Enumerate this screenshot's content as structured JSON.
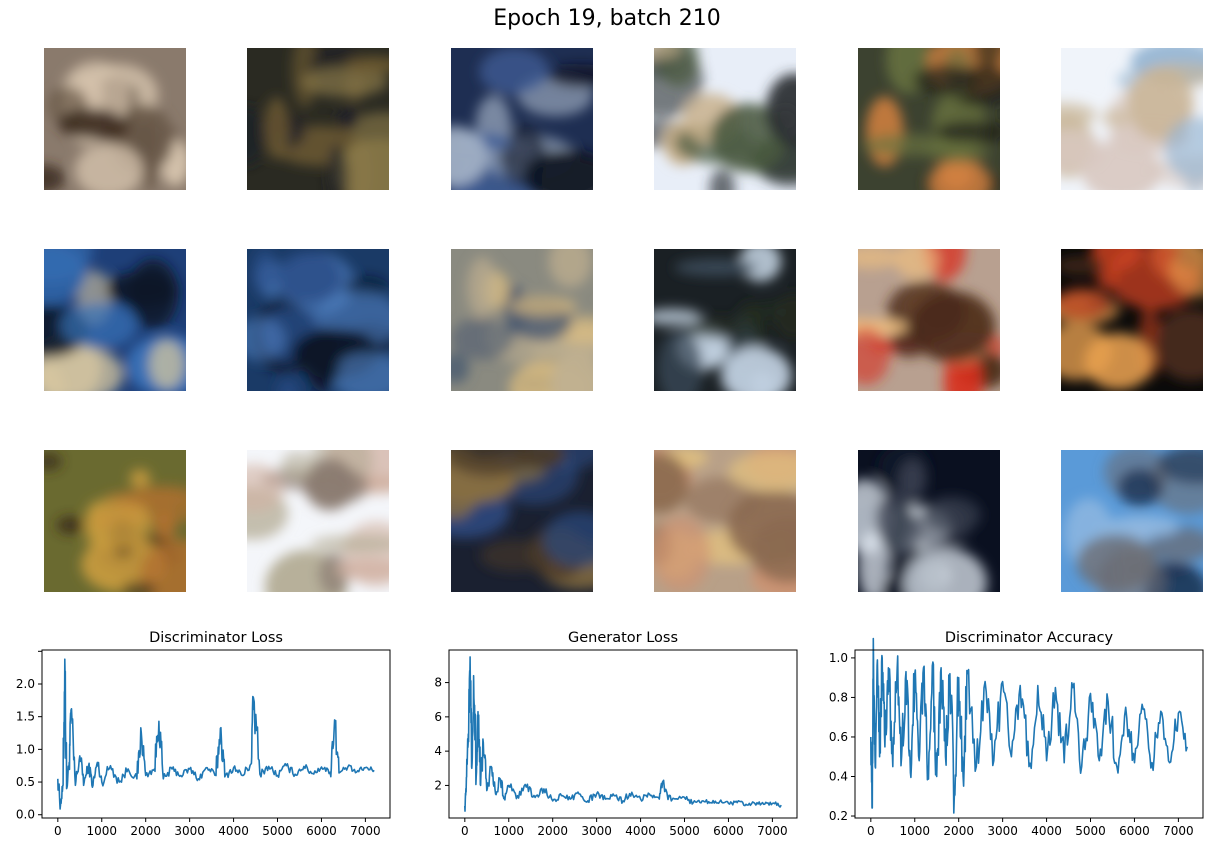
{
  "suptitle": "Epoch 19, batch 210",
  "colors": {
    "line": "#1f77b4",
    "axis": "#000000"
  },
  "sample_grid": {
    "rows": 3,
    "cols": 6,
    "palettes": [
      [
        "#8a7a6c",
        "#3a2a1e",
        "#d9c7b0",
        "#6b5a4a"
      ],
      [
        "#2a2a22",
        "#6e5a32",
        "#1c1f28",
        "#8b7a48"
      ],
      [
        "#1e2e52",
        "#0c1220",
        "#a6b4c8",
        "#3f5d95"
      ],
      [
        "#e8eef8",
        "#4a5a40",
        "#2a2f33",
        "#c8b08a"
      ],
      [
        "#3c4230",
        "#6a7440",
        "#1a1a16",
        "#d08040"
      ],
      [
        "#f0f4fa",
        "#d8c8c0",
        "#c9b596",
        "#8fb2d0"
      ],
      [
        "#1e3f78",
        "#d9c8a0",
        "#3872b8",
        "#0c1828"
      ],
      [
        "#1a3a66",
        "#4f7fc0",
        "#0a1424",
        "#2b4f8a"
      ],
      [
        "#8a8a80",
        "#4a5a70",
        "#c0b090",
        "#e0c080"
      ],
      [
        "#1a2024",
        "#3a4a58",
        "#c8d8e8",
        "#222a20"
      ],
      [
        "#b8a090",
        "#d83020",
        "#f0c080",
        "#4a2a1a"
      ],
      [
        "#0a0a0a",
        "#c84020",
        "#e8a050",
        "#503020"
      ],
      [
        "#6a6a30",
        "#b07030",
        "#3a2a1a",
        "#d0a040"
      ],
      [
        "#f4f6fa",
        "#b0a890",
        "#d0b0a0",
        "#8a7a70"
      ],
      [
        "#1a2030",
        "#4a3a28",
        "#2c4a80",
        "#8a7040"
      ],
      [
        "#b8a088",
        "#e0c080",
        "#8a6a50",
        "#d09070"
      ],
      [
        "#0a1020",
        "#e8f0f8",
        "#3a4050",
        "#10182a"
      ],
      [
        "#5a9ad8",
        "#90b8e0",
        "#6a6a70",
        "#1a3050"
      ]
    ]
  },
  "chart_data": [
    {
      "type": "line",
      "title": "Discriminator Loss",
      "xlabel": "",
      "ylabel": "",
      "xlim": [
        -360,
        7560
      ],
      "ylim": [
        -0.05,
        2.52
      ],
      "xticks": [
        0,
        1000,
        2000,
        3000,
        4000,
        5000,
        6000,
        7000
      ],
      "yticks": [
        0.0,
        0.5,
        1.0,
        1.5,
        2.0,
        2.5
      ],
      "ytick_labels": [
        "0.0",
        "0.5",
        "1.0",
        "1.5",
        "2.0",
        ""
      ],
      "series": [
        {
          "x": [
            0,
            60,
            120,
            160,
            200,
            260,
            300,
            400,
            500,
            600,
            700,
            800,
            900,
            1000,
            1200,
            1400,
            1600,
            1800,
            1900,
            2000,
            2200,
            2300,
            2400,
            2600,
            2800,
            3000,
            3200,
            3400,
            3600,
            3700,
            3800,
            4000,
            4200,
            4400,
            4450,
            4600,
            4800,
            5000,
            5200,
            5400,
            5600,
            5800,
            6000,
            6200,
            6300,
            6400,
            6600,
            6800,
            7000,
            7200
          ],
          "y": [
            0.55,
            0.15,
            0.45,
            2.38,
            0.4,
            0.8,
            1.6,
            0.45,
            0.9,
            0.5,
            0.75,
            0.45,
            0.8,
            0.5,
            0.75,
            0.5,
            0.7,
            0.55,
            1.25,
            0.6,
            0.7,
            1.43,
            0.55,
            0.7,
            0.6,
            0.7,
            0.55,
            0.72,
            0.6,
            1.32,
            0.58,
            0.72,
            0.6,
            0.78,
            1.8,
            0.62,
            0.74,
            0.6,
            0.75,
            0.62,
            0.74,
            0.63,
            0.73,
            0.65,
            1.45,
            0.64,
            0.73,
            0.65,
            0.72,
            0.68
          ]
        }
      ],
      "grid": false
    },
    {
      "type": "line",
      "title": "Generator Loss",
      "xlabel": "",
      "ylabel": "",
      "xlim": [
        -360,
        7560
      ],
      "ylim": [
        0.1,
        9.9
      ],
      "xticks": [
        0,
        1000,
        2000,
        3000,
        4000,
        5000,
        6000,
        7000
      ],
      "yticks": [
        2,
        4,
        6,
        8
      ],
      "ytick_labels": [
        "2",
        "4",
        "6",
        "8"
      ],
      "series": [
        {
          "x": [
            0,
            40,
            80,
            120,
            160,
            200,
            260,
            300,
            360,
            420,
            500,
            600,
            700,
            800,
            900,
            1000,
            1200,
            1400,
            1600,
            1800,
            2000,
            2200,
            2400,
            2600,
            2800,
            3000,
            3200,
            3400,
            3600,
            3800,
            4000,
            4200,
            4400,
            4500,
            4700,
            5000,
            5200,
            5400,
            5600,
            5800,
            6000,
            6200,
            6400,
            6600,
            6800,
            7000,
            7200
          ],
          "y": [
            0.8,
            2.5,
            5.0,
            9.5,
            3.0,
            8.4,
            2.5,
            6.3,
            2.0,
            4.5,
            1.7,
            3.1,
            1.5,
            2.4,
            1.3,
            2.0,
            1.4,
            1.9,
            1.3,
            1.8,
            1.1,
            1.4,
            1.2,
            1.5,
            1.1,
            1.5,
            1.2,
            1.4,
            1.1,
            1.6,
            1.2,
            1.5,
            1.3,
            2.2,
            1.1,
            1.3,
            1.0,
            1.1,
            1.0,
            1.05,
            0.95,
            1.0,
            0.9,
            0.95,
            0.9,
            0.95,
            0.85
          ]
        }
      ],
      "grid": false
    },
    {
      "type": "line",
      "title": "Discriminator Accuracy",
      "xlabel": "",
      "ylabel": "",
      "xlim": [
        -360,
        7560
      ],
      "ylim": [
        0.19,
        1.04
      ],
      "xticks": [
        0,
        1000,
        2000,
        3000,
        4000,
        5000,
        6000,
        7000
      ],
      "yticks": [
        0.2,
        0.4,
        0.6,
        0.8,
        1.0
      ],
      "ytick_labels": [
        "0.2",
        "0.4",
        "0.6",
        "0.8",
        "1.0"
      ],
      "series": [
        {
          "x": [
            0,
            30,
            60,
            100,
            150,
            200,
            260,
            320,
            400,
            500,
            600,
            700,
            800,
            900,
            1000,
            1100,
            1200,
            1300,
            1400,
            1500,
            1600,
            1700,
            1800,
            1900,
            2000,
            2100,
            2200,
            2400,
            2600,
            2800,
            3000,
            3200,
            3400,
            3600,
            3800,
            4000,
            4200,
            4400,
            4600,
            4800,
            5000,
            5200,
            5400,
            5600,
            5800,
            6000,
            6200,
            6400,
            6600,
            6800,
            7000,
            7200
          ],
          "y": [
            0.6,
            0.24,
            1.0,
            0.45,
            0.99,
            0.5,
            1.0,
            0.55,
            0.95,
            0.45,
            0.95,
            0.5,
            0.93,
            0.42,
            0.92,
            0.48,
            0.95,
            0.45,
            0.96,
            0.4,
            0.95,
            0.5,
            0.92,
            0.3,
            0.9,
            0.4,
            0.92,
            0.45,
            0.88,
            0.48,
            0.88,
            0.5,
            0.86,
            0.45,
            0.86,
            0.48,
            0.85,
            0.47,
            0.85,
            0.45,
            0.82,
            0.48,
            0.78,
            0.45,
            0.75,
            0.47,
            0.74,
            0.47,
            0.73,
            0.47,
            0.72,
            0.55
          ]
        }
      ],
      "grid": false
    }
  ]
}
